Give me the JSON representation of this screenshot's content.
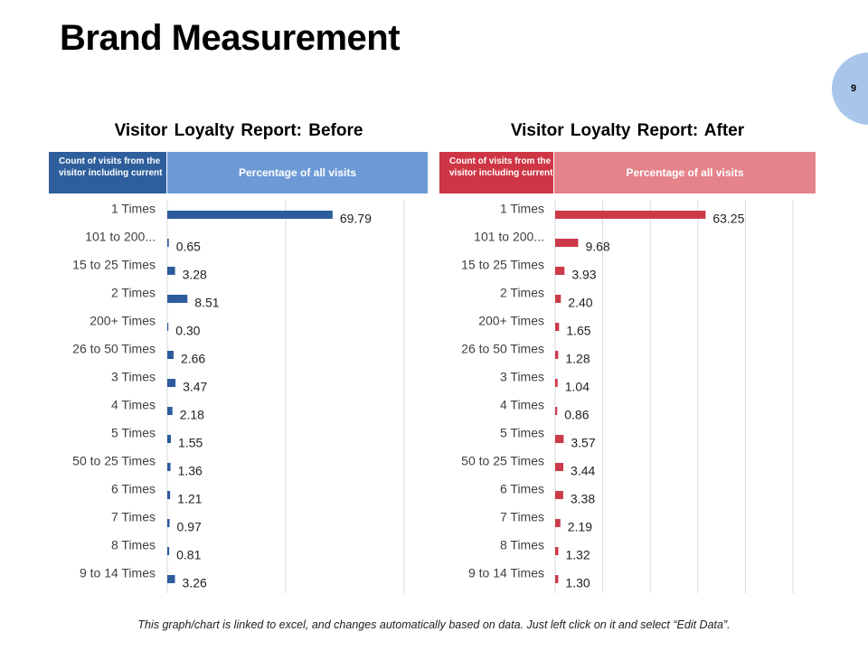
{
  "page": {
    "title": "Brand Measurement",
    "page_number": "9",
    "footnote": "This graph/chart is linked to excel, and changes automatically based on data. Just left click on it and select “Edit Data”."
  },
  "colors": {
    "before_bar": "#2c5c9c",
    "before_header_dark": "#2e5f9c",
    "before_header_light": "#6c9ad6",
    "after_bar": "#cc3a4a",
    "after_header_dark": "#cf3645",
    "after_header_light": "#e4838a",
    "gridline": "#d9d9d9"
  },
  "headers": {
    "before": {
      "count_label": "Count of visits from the visitor including current",
      "percent_label": "Percentage of all visits"
    },
    "after": {
      "count_label": "Count of visits from the visitor including current",
      "percent_label": "Percentage of all visits"
    }
  },
  "chart_data": [
    {
      "type": "bar",
      "orientation": "horizontal",
      "title": "Visitor Loyalty Report: Before",
      "xlabel": "Percentage of all visits",
      "ylabel": "Count of visits from the visitor including current",
      "categories": [
        "1 Times",
        "101 to 200...",
        "15 to 25 Times",
        "2 Times",
        "200+ Times",
        "26 to 50 Times",
        "3 Times",
        "4 Times",
        "5 Times",
        "50 to 25 Times",
        "6 Times",
        "7 Times",
        "8 Times",
        "9 to 14 Times"
      ],
      "values": [
        69.79,
        0.65,
        3.28,
        8.51,
        0.3,
        2.66,
        3.47,
        2.18,
        1.55,
        1.36,
        1.21,
        0.97,
        0.81,
        3.26
      ],
      "value_labels": [
        "69.79",
        "0.65",
        "3.28",
        "8.51",
        "0.30",
        "2.66",
        "3.47",
        "2.18",
        "1.55",
        "1.36",
        "1.21",
        "0.97",
        "0.81",
        "3.26"
      ],
      "xlim": [
        0,
        100
      ],
      "gridlines": [
        0,
        50,
        100
      ],
      "grid": true
    },
    {
      "type": "bar",
      "orientation": "horizontal",
      "title": "Visitor Loyalty Report: After",
      "xlabel": "Percentage of all visits",
      "ylabel": "Count of visits from the visitor including current",
      "categories": [
        "1 Times",
        "101 to 200...",
        "15 to 25 Times",
        "2 Times",
        "200+ Times",
        "26 to 50 Times",
        "3 Times",
        "4 Times",
        "5 Times",
        "50 to 25 Times",
        "6 Times",
        "7 Times",
        "8 Times",
        "9 to 14 Times"
      ],
      "values": [
        63.25,
        9.68,
        3.93,
        2.4,
        1.65,
        1.28,
        1.04,
        0.86,
        3.57,
        3.44,
        3.38,
        2.19,
        1.32,
        1.3
      ],
      "value_labels": [
        "63.25",
        "9.68",
        "3.93",
        "2.40",
        "1.65",
        "1.28",
        "1.04",
        "0.86",
        "3.57",
        "3.44",
        "3.38",
        "2.19",
        "1.32",
        "1.30"
      ],
      "xlim": [
        0,
        100
      ],
      "gridlines": [
        0,
        20,
        40,
        60,
        80,
        100
      ],
      "grid": true
    }
  ]
}
